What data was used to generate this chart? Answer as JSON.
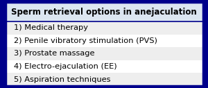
{
  "title": "Sperm retrieval options in anejaculation",
  "rows": [
    "1) Medical therapy",
    "2) Penile vibratory stimulation (PVS)",
    "3) Prostate massage",
    "4) Electro-ejaculation (EE)",
    "5) Aspiration techniques"
  ],
  "header_bg": "#dce6f1",
  "row_bg_odd": "#eeeeee",
  "row_bg_even": "#ffffff",
  "border_color": "#00008B",
  "text_color": "#000000",
  "header_fontsize": 8.5,
  "row_fontsize": 8.2,
  "fig_width": 3.0,
  "fig_height": 1.27,
  "dpi": 100
}
